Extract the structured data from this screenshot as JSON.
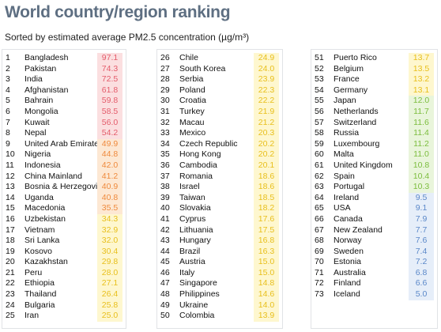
{
  "title": "World country/region ranking",
  "subtitle": "Sorted by estimated average PM2.5 concentration (µg/m³)",
  "colors": {
    "title": "#5e6f82",
    "red_bg": "#fbdfe0",
    "red_text": "#e45c6b",
    "orange_bg": "#fde8d3",
    "orange_text": "#ef8a3d",
    "yellow_bg": "#fef7cf",
    "yellow_text": "#e8bf1b",
    "green_bg": "#e9f5db",
    "green_text": "#7cbd3e",
    "blue_bg": "#e6eef9",
    "blue_text": "#5b88c9"
  },
  "columns": [
    [
      {
        "rank": "1",
        "name": "Bangladesh",
        "value": "97.1",
        "level": "red"
      },
      {
        "rank": "2",
        "name": "Pakistan",
        "value": "74.3",
        "level": "red"
      },
      {
        "rank": "3",
        "name": "India",
        "value": "72.5",
        "level": "red"
      },
      {
        "rank": "4",
        "name": "Afghanistan",
        "value": "61.8",
        "level": "red"
      },
      {
        "rank": "5",
        "name": "Bahrain",
        "value": "59.8",
        "level": "red"
      },
      {
        "rank": "6",
        "name": "Mongolia",
        "value": "58.5",
        "level": "red"
      },
      {
        "rank": "7",
        "name": "Kuwait",
        "value": "56.0",
        "level": "red"
      },
      {
        "rank": "8",
        "name": "Nepal",
        "value": "54.2",
        "level": "red"
      },
      {
        "rank": "9",
        "name": "United Arab Emirates",
        "value": "49.9",
        "level": "orange"
      },
      {
        "rank": "10",
        "name": "Nigeria",
        "value": "44.8",
        "level": "orange"
      },
      {
        "rank": "11",
        "name": "Indonesia",
        "value": "42.0",
        "level": "orange"
      },
      {
        "rank": "12",
        "name": "China Mainland",
        "value": "41.2",
        "level": "orange"
      },
      {
        "rank": "13",
        "name": "Bosnia & Herzegovina",
        "value": "40.9",
        "level": "orange"
      },
      {
        "rank": "14",
        "name": "Uganda",
        "value": "40.8",
        "level": "orange"
      },
      {
        "rank": "15",
        "name": "Macedonia",
        "value": "35.5",
        "level": "orange"
      },
      {
        "rank": "16",
        "name": "Uzbekistan",
        "value": "34.3",
        "level": "yellow"
      },
      {
        "rank": "17",
        "name": "Vietnam",
        "value": "32.9",
        "level": "yellow"
      },
      {
        "rank": "18",
        "name": "Sri Lanka",
        "value": "32.0",
        "level": "yellow"
      },
      {
        "rank": "19",
        "name": "Kosovo",
        "value": "30.4",
        "level": "yellow"
      },
      {
        "rank": "20",
        "name": "Kazakhstan",
        "value": "29.8",
        "level": "yellow"
      },
      {
        "rank": "21",
        "name": "Peru",
        "value": "28.0",
        "level": "yellow"
      },
      {
        "rank": "22",
        "name": "Ethiopia",
        "value": "27.1",
        "level": "yellow"
      },
      {
        "rank": "23",
        "name": "Thailand",
        "value": "26.4",
        "level": "yellow"
      },
      {
        "rank": "24",
        "name": "Bulgaria",
        "value": "25.8",
        "level": "yellow"
      },
      {
        "rank": "25",
        "name": "Iran",
        "value": "25.0",
        "level": "yellow"
      }
    ],
    [
      {
        "rank": "26",
        "name": "Chile",
        "value": "24.9",
        "level": "yellow"
      },
      {
        "rank": "27",
        "name": "South Korea",
        "value": "24.0",
        "level": "yellow"
      },
      {
        "rank": "28",
        "name": "Serbia",
        "value": "23.9",
        "level": "yellow"
      },
      {
        "rank": "29",
        "name": "Poland",
        "value": "22.3",
        "level": "yellow"
      },
      {
        "rank": "30",
        "name": "Croatia",
        "value": "22.2",
        "level": "yellow"
      },
      {
        "rank": "31",
        "name": "Turkey",
        "value": "21.9",
        "level": "yellow"
      },
      {
        "rank": "32",
        "name": "Macau",
        "value": "21.2",
        "level": "yellow"
      },
      {
        "rank": "33",
        "name": "Mexico",
        "value": "20.3",
        "level": "yellow"
      },
      {
        "rank": "34",
        "name": "Czech Republic",
        "value": "20.2",
        "level": "yellow"
      },
      {
        "rank": "35",
        "name": "Hong Kong",
        "value": "20.2",
        "level": "yellow"
      },
      {
        "rank": "36",
        "name": "Cambodia",
        "value": "20.1",
        "level": "yellow"
      },
      {
        "rank": "37",
        "name": "Romania",
        "value": "18.6",
        "level": "yellow"
      },
      {
        "rank": "38",
        "name": "Israel",
        "value": "18.6",
        "level": "yellow"
      },
      {
        "rank": "39",
        "name": "Taiwan",
        "value": "18.5",
        "level": "yellow"
      },
      {
        "rank": "40",
        "name": "Slovakia",
        "value": "18.2",
        "level": "yellow"
      },
      {
        "rank": "41",
        "name": "Cyprus",
        "value": "17.6",
        "level": "yellow"
      },
      {
        "rank": "42",
        "name": "Lithuania",
        "value": "17.5",
        "level": "yellow"
      },
      {
        "rank": "43",
        "name": "Hungary",
        "value": "16.8",
        "level": "yellow"
      },
      {
        "rank": "44",
        "name": "Brazil",
        "value": "16.3",
        "level": "yellow"
      },
      {
        "rank": "45",
        "name": "Austria",
        "value": "15.0",
        "level": "yellow"
      },
      {
        "rank": "46",
        "name": "Italy",
        "value": "15.0",
        "level": "yellow"
      },
      {
        "rank": "47",
        "name": "Singapore",
        "value": "14.8",
        "level": "yellow"
      },
      {
        "rank": "48",
        "name": "Philippines",
        "value": "14.6",
        "level": "yellow"
      },
      {
        "rank": "49",
        "name": "Ukraine",
        "value": "14.0",
        "level": "yellow"
      },
      {
        "rank": "50",
        "name": "Colombia",
        "value": "13.9",
        "level": "yellow"
      }
    ],
    [
      {
        "rank": "51",
        "name": "Puerto Rico",
        "value": "13.7",
        "level": "yellow"
      },
      {
        "rank": "52",
        "name": "Belgium",
        "value": "13.5",
        "level": "yellow"
      },
      {
        "rank": "53",
        "name": "France",
        "value": "13.2",
        "level": "yellow"
      },
      {
        "rank": "54",
        "name": "Germany",
        "value": "13.1",
        "level": "yellow"
      },
      {
        "rank": "55",
        "name": "Japan",
        "value": "12.0",
        "level": "green"
      },
      {
        "rank": "56",
        "name": "Netherlands",
        "value": "11.7",
        "level": "green"
      },
      {
        "rank": "57",
        "name": "Switzerland",
        "value": "11.6",
        "level": "green"
      },
      {
        "rank": "58",
        "name": "Russia",
        "value": "11.4",
        "level": "green"
      },
      {
        "rank": "59",
        "name": "Luxembourg",
        "value": "11.2",
        "level": "green"
      },
      {
        "rank": "60",
        "name": "Malta",
        "value": "11.0",
        "level": "green"
      },
      {
        "rank": "61",
        "name": "United Kingdom",
        "value": "10.8",
        "level": "green"
      },
      {
        "rank": "62",
        "name": "Spain",
        "value": "10.4",
        "level": "green"
      },
      {
        "rank": "63",
        "name": "Portugal",
        "value": "10.3",
        "level": "green"
      },
      {
        "rank": "64",
        "name": "Ireland",
        "value": "9.5",
        "level": "blue"
      },
      {
        "rank": "65",
        "name": "USA",
        "value": "9.1",
        "level": "blue"
      },
      {
        "rank": "66",
        "name": "Canada",
        "value": "7.9",
        "level": "blue"
      },
      {
        "rank": "67",
        "name": "New Zealand",
        "value": "7.7",
        "level": "blue"
      },
      {
        "rank": "68",
        "name": "Norway",
        "value": "7.6",
        "level": "blue"
      },
      {
        "rank": "69",
        "name": "Sweden",
        "value": "7.4",
        "level": "blue"
      },
      {
        "rank": "70",
        "name": "Estonia",
        "value": "7.2",
        "level": "blue"
      },
      {
        "rank": "71",
        "name": "Australia",
        "value": "6.8",
        "level": "blue"
      },
      {
        "rank": "72",
        "name": "Finland",
        "value": "6.6",
        "level": "blue"
      },
      {
        "rank": "73",
        "name": "Iceland",
        "value": "5.0",
        "level": "blue"
      }
    ]
  ]
}
